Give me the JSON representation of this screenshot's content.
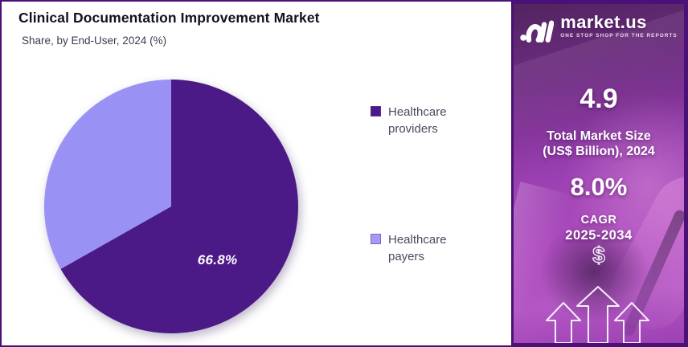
{
  "header": {
    "title": "Clinical Documentation Improvement Market",
    "subtitle": "Share, by End-User, 2024 (%)"
  },
  "chart_data": {
    "type": "pie",
    "title": "Clinical Documentation Improvement Market",
    "subtitle": "Share, by End-User, 2024 (%)",
    "labels": [
      "Healthcare providers",
      "Healthcare payers"
    ],
    "values": [
      66.8,
      33.2
    ],
    "colors": [
      "#4B1A87",
      "#9A91F5"
    ],
    "data_labels": [
      "66.8%",
      ""
    ],
    "start_angle_deg": 0,
    "direction": "clockwise",
    "legend_position": "right"
  },
  "legend": {
    "items": [
      {
        "label": "Healthcare providers",
        "color": "#4B1A87"
      },
      {
        "label": "Healthcare payers",
        "color": "#A79AF2"
      }
    ]
  },
  "sidebar": {
    "logo": {
      "brand": "market.us",
      "tagline": "ONE STOP SHOP FOR THE REPORTS"
    },
    "market_size": {
      "value": "4.9",
      "label_line1": "Total Market Size",
      "label_line2": "(US$ Billion), 2024"
    },
    "cagr": {
      "value": "8.0%",
      "label_line1": "CAGR",
      "label_line2": "2025-2034"
    },
    "dollar_symbol": "$",
    "accent_colors": {
      "border": "#4A1178",
      "background_top": "#52245f",
      "background_bottom": "#9d40b3"
    }
  }
}
